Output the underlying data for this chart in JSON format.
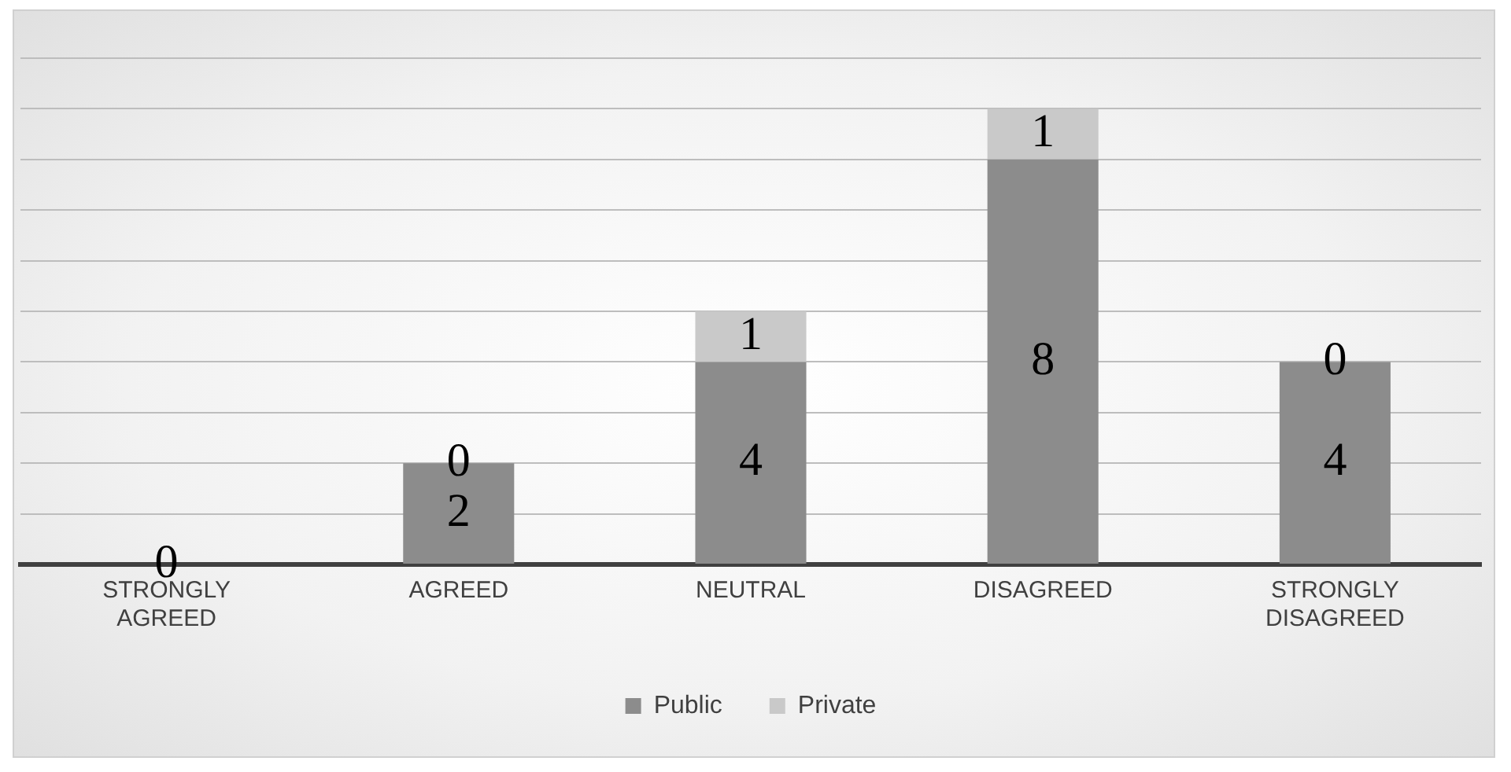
{
  "chart_data": {
    "type": "bar",
    "stacked": true,
    "categories": [
      "STRONGLY AGREED",
      "AGREED",
      "NEUTRAL",
      "DISAGREED",
      "STRONGLY DISAGREED"
    ],
    "series": [
      {
        "name": "Public",
        "color": "#8c8c8c",
        "values": [
          0,
          2,
          4,
          8,
          4
        ],
        "value_labels": [
          "0",
          "2",
          "4",
          "8",
          "4"
        ]
      },
      {
        "name": "Private",
        "color": "#c9c9c9",
        "values": [
          0,
          0,
          1,
          1,
          0
        ],
        "value_labels": [
          null,
          "0",
          "1",
          "1",
          "0"
        ]
      }
    ],
    "ylim": [
      0,
      10
    ],
    "yticks": [
      {
        "value": 0,
        "label": null
      },
      {
        "value": 1,
        "label": null
      },
      {
        "value": 2,
        "label": null
      },
      {
        "value": 3,
        "label": null
      },
      {
        "value": 4,
        "label": null
      },
      {
        "value": 5,
        "label": null
      },
      {
        "value": 6,
        "label": null
      },
      {
        "value": 7,
        "label": null
      },
      {
        "value": 8,
        "label": null
      },
      {
        "value": 9,
        "label": null
      },
      {
        "value": 10,
        "label": null
      }
    ],
    "tick_labels": "x",
    "grid": "y",
    "legend": "bottom"
  }
}
